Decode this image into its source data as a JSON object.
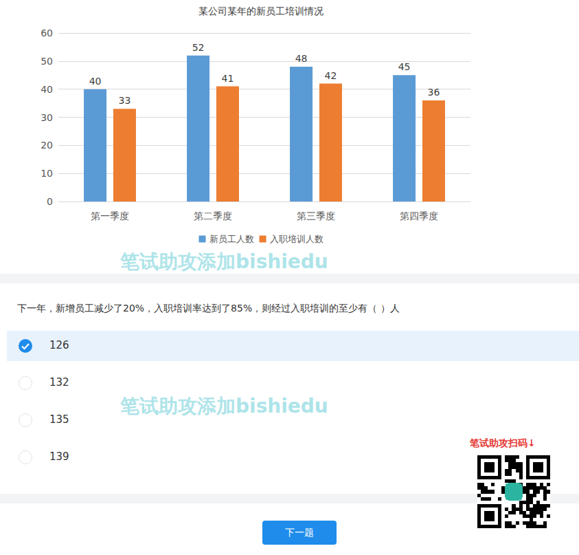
{
  "chart_data": {
    "type": "bar",
    "title": "某公司某年的新员工培训情况",
    "categories": [
      "第一季度",
      "第二季度",
      "第三季度",
      "第四季度"
    ],
    "series": [
      {
        "name": "新员工人数",
        "color": "#5b9bd5",
        "values": [
          40,
          52,
          48,
          45
        ]
      },
      {
        "name": "入职培训人数",
        "color": "#ed7d31",
        "values": [
          33,
          41,
          42,
          36
        ]
      }
    ],
    "ylim": [
      0,
      60
    ],
    "yticks": [
      0,
      10,
      20,
      30,
      40,
      50,
      60
    ],
    "grid": true,
    "legend": "bottom",
    "data_labels": true
  },
  "question": "下一年，新增员工减少了20%，入职培训率达到了85%，则经过入职培训的至少有（ ）人",
  "options": [
    {
      "value": 126,
      "selected": true
    },
    {
      "value": 132,
      "selected": false
    },
    {
      "value": 135,
      "selected": false
    },
    {
      "value": 139,
      "selected": false
    }
  ],
  "button": "下一题",
  "watermark": "笔试助攻添加bishiedu",
  "qr_label": "笔试助攻扫码↓"
}
